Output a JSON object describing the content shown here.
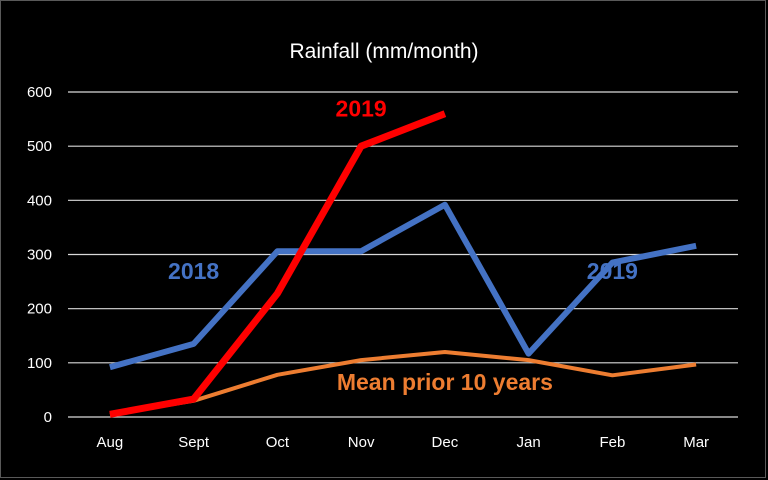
{
  "chart_data": {
    "type": "line",
    "title": "Rainfall (mm/month)",
    "xlabel": "",
    "ylabel": "",
    "categories": [
      "Aug",
      "Sept",
      "Oct",
      "Nov",
      "Dec",
      "Jan",
      "Feb",
      "Mar"
    ],
    "ylim": [
      0,
      600
    ],
    "yticks": [
      "0",
      "100",
      "200",
      "300",
      "400",
      "500",
      "600"
    ],
    "grid": true,
    "legend": "none",
    "series": [
      {
        "id": "mean",
        "name": "Mean prior 10 years",
        "color": "#ED7D31",
        "values": [
          5,
          30,
          78,
          105,
          120,
          105,
          77,
          97
        ]
      },
      {
        "id": "s2018",
        "name": "",
        "color": "#4472C4",
        "values": [
          92,
          135,
          306,
          306,
          392,
          117,
          285,
          316
        ]
      },
      {
        "id": "s2019",
        "name": "2019",
        "color": "#FF0000",
        "values": [
          5,
          33,
          228,
          500,
          560,
          null,
          null,
          null
        ]
      }
    ],
    "annotations": [
      {
        "text": "2019",
        "color": "#FF0000",
        "category": "Nov",
        "y": 555
      },
      {
        "text": "2018",
        "color": "#4472C4",
        "category": "Sept",
        "y": 255
      },
      {
        "text": "2019",
        "color": "#4472C4",
        "category": "Feb",
        "y": 255
      },
      {
        "text": "Mean prior 10 years",
        "color": "#ED7D31",
        "category": "Dec",
        "y": 50
      }
    ]
  }
}
